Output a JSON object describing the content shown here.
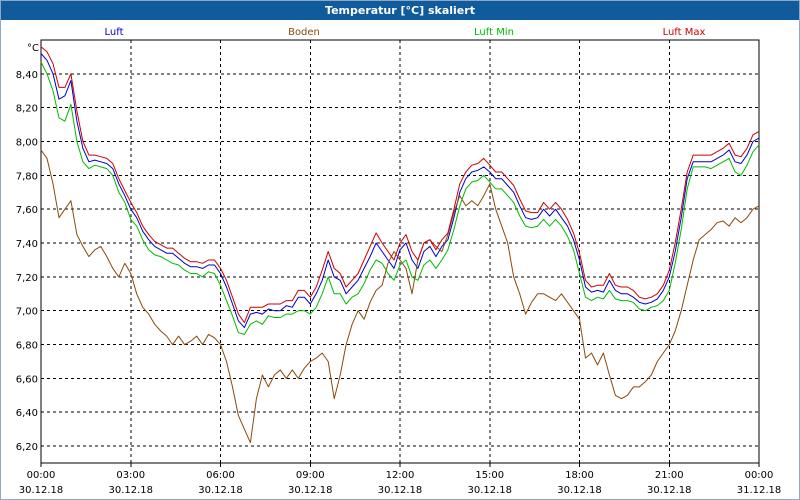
{
  "window": {
    "title": "Temperatur [°C] skaliert"
  },
  "chart_data": {
    "type": "line",
    "title": "Temperatur [°C] skaliert",
    "ylabel": "°C",
    "xlabel": "",
    "ylim": [
      6.1,
      8.6
    ],
    "xlim": [
      0,
      24
    ],
    "grid": true,
    "legend_position": "top",
    "y_ticks": [
      "6,20",
      "6,40",
      "6,60",
      "6,80",
      "7,00",
      "7,20",
      "7,40",
      "7,60",
      "7,80",
      "8,00",
      "8,20",
      "8,40"
    ],
    "x_ticks": [
      {
        "time": "00:00",
        "date": "30.12.18"
      },
      {
        "time": "03:00",
        "date": "30.12.18"
      },
      {
        "time": "06:00",
        "date": "30.12.18"
      },
      {
        "time": "09:00",
        "date": "30.12.18"
      },
      {
        "time": "12:00",
        "date": "30.12.18"
      },
      {
        "time": "15:00",
        "date": "30.12.18"
      },
      {
        "time": "18:00",
        "date": "30.12.18"
      },
      {
        "time": "21:00",
        "date": "30.12.18"
      },
      {
        "time": "00:00",
        "date": "31.12.18"
      }
    ],
    "series": [
      {
        "name": "Luft",
        "color": "#0000cc",
        "x": [
          0,
          0.2,
          0.4,
          0.6,
          0.8,
          1,
          1.2,
          1.4,
          1.6,
          1.8,
          2,
          2.2,
          2.4,
          2.6,
          2.8,
          3,
          3.2,
          3.4,
          3.6,
          3.8,
          4,
          4.2,
          4.4,
          4.6,
          4.8,
          5,
          5.2,
          5.4,
          5.6,
          5.8,
          6,
          6.2,
          6.4,
          6.6,
          6.8,
          7,
          7.2,
          7.4,
          7.6,
          7.8,
          8,
          8.2,
          8.4,
          8.6,
          8.8,
          9,
          9.2,
          9.4,
          9.6,
          9.8,
          10,
          10.2,
          10.4,
          10.6,
          10.8,
          11,
          11.2,
          11.4,
          11.6,
          11.8,
          12,
          12.2,
          12.4,
          12.6,
          12.8,
          13,
          13.2,
          13.4,
          13.6,
          13.8,
          14,
          14.2,
          14.4,
          14.6,
          14.8,
          15,
          15.2,
          15.4,
          15.6,
          15.8,
          16,
          16.2,
          16.4,
          16.6,
          16.8,
          17,
          17.2,
          17.4,
          17.6,
          17.8,
          18,
          18.2,
          18.4,
          18.6,
          18.8,
          19,
          19.2,
          19.4,
          19.6,
          19.8,
          20,
          20.2,
          20.4,
          20.6,
          20.8,
          21,
          21.2,
          21.4,
          21.6,
          21.8,
          22,
          22.2,
          22.4,
          22.6,
          22.8,
          23,
          23.2,
          23.4,
          23.6,
          23.8,
          24
        ],
        "values": [
          8.52,
          8.48,
          8.4,
          8.25,
          8.27,
          8.36,
          8.12,
          7.96,
          7.88,
          7.89,
          7.88,
          7.87,
          7.84,
          7.75,
          7.68,
          7.6,
          7.55,
          7.47,
          7.42,
          7.38,
          7.36,
          7.34,
          7.34,
          7.31,
          7.28,
          7.26,
          7.26,
          7.25,
          7.27,
          7.27,
          7.22,
          7.14,
          7.04,
          6.94,
          6.9,
          6.98,
          6.99,
          6.98,
          7.01,
          7.0,
          7.0,
          7.03,
          7.02,
          7.08,
          7.08,
          7.04,
          7.1,
          7.18,
          7.3,
          7.2,
          7.18,
          7.1,
          7.14,
          7.18,
          7.25,
          7.32,
          7.4,
          7.35,
          7.3,
          7.25,
          7.36,
          7.4,
          7.3,
          7.25,
          7.35,
          7.38,
          7.32,
          7.38,
          7.42,
          7.55,
          7.7,
          7.78,
          7.82,
          7.83,
          7.85,
          7.82,
          7.78,
          7.78,
          7.74,
          7.7,
          7.62,
          7.55,
          7.54,
          7.55,
          7.6,
          7.56,
          7.6,
          7.55,
          7.5,
          7.42,
          7.3,
          7.14,
          7.11,
          7.12,
          7.11,
          7.18,
          7.12,
          7.1,
          7.1,
          7.08,
          7.05,
          7.04,
          7.05,
          7.07,
          7.12,
          7.2,
          7.35,
          7.55,
          7.78,
          7.88,
          7.88,
          7.88,
          7.88,
          7.9,
          7.92,
          7.95,
          7.88,
          7.87,
          7.92,
          8.0,
          8.02
        ]
      },
      {
        "name": "Boden",
        "color": "#8b4a0c",
        "x": [
          0,
          0.2,
          0.4,
          0.6,
          0.8,
          1,
          1.2,
          1.4,
          1.6,
          1.8,
          2,
          2.2,
          2.4,
          2.6,
          2.8,
          3,
          3.2,
          3.4,
          3.6,
          3.8,
          4,
          4.2,
          4.4,
          4.6,
          4.8,
          5,
          5.2,
          5.4,
          5.6,
          5.8,
          6,
          6.2,
          6.4,
          6.6,
          6.8,
          7,
          7.2,
          7.4,
          7.6,
          7.8,
          8,
          8.2,
          8.4,
          8.6,
          8.8,
          9,
          9.2,
          9.4,
          9.6,
          9.8,
          10,
          10.2,
          10.4,
          10.6,
          10.8,
          11,
          11.2,
          11.4,
          11.6,
          11.8,
          12,
          12.2,
          12.4,
          12.6,
          12.8,
          13,
          13.2,
          13.4,
          13.6,
          13.8,
          14,
          14.2,
          14.4,
          14.6,
          14.8,
          15,
          15.2,
          15.4,
          15.6,
          15.8,
          16,
          16.2,
          16.4,
          16.6,
          16.8,
          17,
          17.2,
          17.4,
          17.6,
          17.8,
          18,
          18.2,
          18.4,
          18.6,
          18.8,
          19,
          19.2,
          19.4,
          19.6,
          19.8,
          20,
          20.2,
          20.4,
          20.6,
          20.8,
          21,
          21.2,
          21.4,
          21.6,
          21.8,
          22,
          22.2,
          22.4,
          22.6,
          22.8,
          23,
          23.2,
          23.4,
          23.6,
          23.8,
          24
        ],
        "values": [
          7.95,
          7.9,
          7.75,
          7.55,
          7.6,
          7.65,
          7.45,
          7.38,
          7.32,
          7.36,
          7.38,
          7.32,
          7.25,
          7.2,
          7.28,
          7.22,
          7.1,
          7.02,
          6.98,
          6.92,
          6.88,
          6.85,
          6.8,
          6.85,
          6.8,
          6.82,
          6.85,
          6.8,
          6.86,
          6.84,
          6.8,
          6.7,
          6.55,
          6.38,
          6.3,
          6.22,
          6.48,
          6.62,
          6.55,
          6.62,
          6.65,
          6.6,
          6.65,
          6.6,
          6.66,
          6.7,
          6.72,
          6.75,
          6.7,
          6.48,
          6.62,
          6.8,
          6.92,
          7.0,
          6.95,
          7.05,
          7.12,
          7.15,
          7.28,
          7.35,
          7.3,
          7.25,
          7.1,
          7.3,
          7.4,
          7.42,
          7.38,
          7.35,
          7.45,
          7.58,
          7.68,
          7.62,
          7.65,
          7.62,
          7.68,
          7.75,
          7.6,
          7.5,
          7.4,
          7.2,
          7.1,
          6.98,
          7.05,
          7.1,
          7.1,
          7.08,
          7.06,
          7.1,
          7.05,
          7.0,
          6.95,
          6.72,
          6.75,
          6.68,
          6.75,
          6.62,
          6.5,
          6.48,
          6.5,
          6.55,
          6.55,
          6.58,
          6.62,
          6.7,
          6.75,
          6.8,
          6.88,
          7.0,
          7.15,
          7.3,
          7.42,
          7.45,
          7.48,
          7.52,
          7.53,
          7.5,
          7.55,
          7.52,
          7.55,
          7.6,
          7.62
        ]
      },
      {
        "name": "Luft Min",
        "color": "#00bb00",
        "x": [
          0,
          0.2,
          0.4,
          0.6,
          0.8,
          1,
          1.2,
          1.4,
          1.6,
          1.8,
          2,
          2.2,
          2.4,
          2.6,
          2.8,
          3,
          3.2,
          3.4,
          3.6,
          3.8,
          4,
          4.2,
          4.4,
          4.6,
          4.8,
          5,
          5.2,
          5.4,
          5.6,
          5.8,
          6,
          6.2,
          6.4,
          6.6,
          6.8,
          7,
          7.2,
          7.4,
          7.6,
          7.8,
          8,
          8.2,
          8.4,
          8.6,
          8.8,
          9,
          9.2,
          9.4,
          9.6,
          9.8,
          10,
          10.2,
          10.4,
          10.6,
          10.8,
          11,
          11.2,
          11.4,
          11.6,
          11.8,
          12,
          12.2,
          12.4,
          12.6,
          12.8,
          13,
          13.2,
          13.4,
          13.6,
          13.8,
          14,
          14.2,
          14.4,
          14.6,
          14.8,
          15,
          15.2,
          15.4,
          15.6,
          15.8,
          16,
          16.2,
          16.4,
          16.6,
          16.8,
          17,
          17.2,
          17.4,
          17.6,
          17.8,
          18,
          18.2,
          18.4,
          18.6,
          18.8,
          19,
          19.2,
          19.4,
          19.6,
          19.8,
          20,
          20.2,
          20.4,
          20.6,
          20.8,
          21,
          21.2,
          21.4,
          21.6,
          21.8,
          22,
          22.2,
          22.4,
          22.6,
          22.8,
          23,
          23.2,
          23.4,
          23.6,
          23.8,
          24
        ],
        "values": [
          8.47,
          8.4,
          8.3,
          8.14,
          8.12,
          8.22,
          8.0,
          7.88,
          7.84,
          7.86,
          7.85,
          7.84,
          7.8,
          7.7,
          7.64,
          7.54,
          7.5,
          7.42,
          7.36,
          7.33,
          7.32,
          7.3,
          7.28,
          7.27,
          7.24,
          7.22,
          7.22,
          7.2,
          7.23,
          7.22,
          7.15,
          7.06,
          6.97,
          6.87,
          6.86,
          6.92,
          6.94,
          6.92,
          6.97,
          6.96,
          6.96,
          6.98,
          6.98,
          7.0,
          7.0,
          6.98,
          7.02,
          7.1,
          7.2,
          7.1,
          7.1,
          7.04,
          7.08,
          7.1,
          7.16,
          7.24,
          7.3,
          7.28,
          7.22,
          7.18,
          7.27,
          7.3,
          7.2,
          7.18,
          7.27,
          7.3,
          7.25,
          7.3,
          7.36,
          7.48,
          7.62,
          7.72,
          7.76,
          7.77,
          7.8,
          7.76,
          7.72,
          7.72,
          7.68,
          7.64,
          7.56,
          7.5,
          7.49,
          7.5,
          7.54,
          7.5,
          7.54,
          7.5,
          7.44,
          7.36,
          7.22,
          7.08,
          7.06,
          7.08,
          7.07,
          7.12,
          7.07,
          7.06,
          7.06,
          7.05,
          7.01,
          7.0,
          7.02,
          7.03,
          7.06,
          7.12,
          7.28,
          7.48,
          7.72,
          7.85,
          7.85,
          7.85,
          7.84,
          7.86,
          7.88,
          7.9,
          7.82,
          7.8,
          7.86,
          7.94,
          7.98
        ]
      },
      {
        "name": "Luft Max",
        "color": "#cc0000",
        "x": [
          0,
          0.2,
          0.4,
          0.6,
          0.8,
          1,
          1.2,
          1.4,
          1.6,
          1.8,
          2,
          2.2,
          2.4,
          2.6,
          2.8,
          3,
          3.2,
          3.4,
          3.6,
          3.8,
          4,
          4.2,
          4.4,
          4.6,
          4.8,
          5,
          5.2,
          5.4,
          5.6,
          5.8,
          6,
          6.2,
          6.4,
          6.6,
          6.8,
          7,
          7.2,
          7.4,
          7.6,
          7.8,
          8,
          8.2,
          8.4,
          8.6,
          8.8,
          9,
          9.2,
          9.4,
          9.6,
          9.8,
          10,
          10.2,
          10.4,
          10.6,
          10.8,
          11,
          11.2,
          11.4,
          11.6,
          11.8,
          12,
          12.2,
          12.4,
          12.6,
          12.8,
          13,
          13.2,
          13.4,
          13.6,
          13.8,
          14,
          14.2,
          14.4,
          14.6,
          14.8,
          15,
          15.2,
          15.4,
          15.6,
          15.8,
          16,
          16.2,
          16.4,
          16.6,
          16.8,
          17,
          17.2,
          17.4,
          17.6,
          17.8,
          18,
          18.2,
          18.4,
          18.6,
          18.8,
          19,
          19.2,
          19.4,
          19.6,
          19.8,
          20,
          20.2,
          20.4,
          20.6,
          20.8,
          21,
          21.2,
          21.4,
          21.6,
          21.8,
          22,
          22.2,
          22.4,
          22.6,
          22.8,
          23,
          23.2,
          23.4,
          23.6,
          23.8,
          24
        ],
        "values": [
          8.56,
          8.53,
          8.46,
          8.32,
          8.32,
          8.4,
          8.18,
          8.0,
          7.92,
          7.92,
          7.91,
          7.9,
          7.87,
          7.78,
          7.71,
          7.64,
          7.58,
          7.5,
          7.45,
          7.41,
          7.39,
          7.37,
          7.37,
          7.34,
          7.31,
          7.29,
          7.29,
          7.28,
          7.3,
          7.3,
          7.25,
          7.18,
          7.08,
          6.98,
          6.93,
          7.02,
          7.02,
          7.02,
          7.04,
          7.04,
          7.04,
          7.06,
          7.06,
          7.12,
          7.12,
          7.08,
          7.14,
          7.24,
          7.35,
          7.25,
          7.22,
          7.14,
          7.18,
          7.22,
          7.3,
          7.38,
          7.46,
          7.4,
          7.35,
          7.3,
          7.4,
          7.45,
          7.35,
          7.3,
          7.4,
          7.42,
          7.36,
          7.42,
          7.46,
          7.6,
          7.75,
          7.82,
          7.86,
          7.87,
          7.9,
          7.86,
          7.82,
          7.82,
          7.78,
          7.74,
          7.66,
          7.59,
          7.58,
          7.58,
          7.64,
          7.6,
          7.64,
          7.6,
          7.54,
          7.46,
          7.34,
          7.18,
          7.14,
          7.15,
          7.15,
          7.22,
          7.15,
          7.14,
          7.14,
          7.12,
          7.08,
          7.07,
          7.08,
          7.1,
          7.15,
          7.24,
          7.4,
          7.6,
          7.82,
          7.92,
          7.92,
          7.92,
          7.92,
          7.94,
          7.96,
          7.99,
          7.92,
          7.91,
          7.96,
          8.04,
          8.06
        ]
      }
    ]
  }
}
